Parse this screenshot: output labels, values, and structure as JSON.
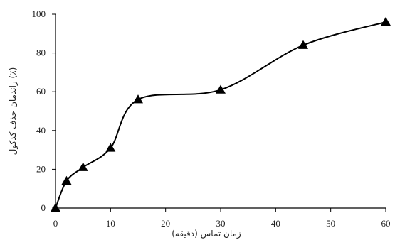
{
  "chart_data": {
    "type": "line",
    "xlabel": "زمان تماس (دقیقه)",
    "ylabel": "راندمان حذف کدکول (٪)",
    "xlim": [
      0,
      60
    ],
    "ylim": [
      0,
      100
    ],
    "x_ticks": [
      0,
      10,
      20,
      30,
      40,
      50,
      60
    ],
    "y_ticks": [
      0,
      20,
      40,
      60,
      80,
      100
    ],
    "grid": false,
    "marker": "triangle",
    "line_color": "#000000",
    "series": [
      {
        "x": [
          0,
          2,
          5,
          10,
          15,
          30,
          45,
          60
        ],
        "y": [
          0,
          14,
          21,
          31,
          56,
          61,
          84,
          96
        ]
      }
    ]
  }
}
